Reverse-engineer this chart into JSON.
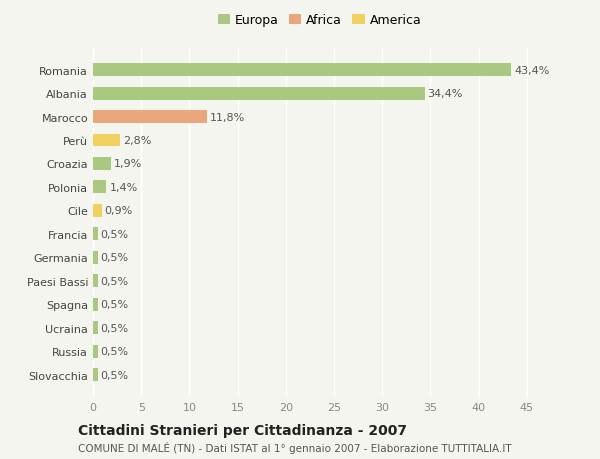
{
  "categories": [
    "Romania",
    "Albania",
    "Marocco",
    "Perù",
    "Croazia",
    "Polonia",
    "Cile",
    "Francia",
    "Germania",
    "Paesi Bassi",
    "Spagna",
    "Ucraina",
    "Russia",
    "Slovacchia"
  ],
  "values": [
    43.4,
    34.4,
    11.8,
    2.8,
    1.9,
    1.4,
    0.9,
    0.5,
    0.5,
    0.5,
    0.5,
    0.5,
    0.5,
    0.5
  ],
  "labels": [
    "43,4%",
    "34,4%",
    "11,8%",
    "2,8%",
    "1,9%",
    "1,4%",
    "0,9%",
    "0,5%",
    "0,5%",
    "0,5%",
    "0,5%",
    "0,5%",
    "0,5%",
    "0,5%"
  ],
  "continent": [
    "Europa",
    "Europa",
    "Africa",
    "America",
    "Europa",
    "Europa",
    "America",
    "Europa",
    "Europa",
    "Europa",
    "Europa",
    "Europa",
    "Europa",
    "Europa"
  ],
  "colors": {
    "Europa": "#a8c97f",
    "Africa": "#e8a87c",
    "America": "#f0d060"
  },
  "xlim": [
    0,
    47
  ],
  "xticks": [
    0,
    5,
    10,
    15,
    20,
    25,
    30,
    35,
    40,
    45
  ],
  "title": "Cittadini Stranieri per Cittadinanza - 2007",
  "subtitle": "COMUNE DI MALÉ (TN) - Dati ISTAT al 1° gennaio 2007 - Elaborazione TUTTITALIA.IT",
  "background_color": "#f5f5f0",
  "bar_height": 0.55,
  "label_fontsize": 8,
  "tick_fontsize": 8,
  "ytick_fontsize": 8,
  "title_fontsize": 10,
  "subtitle_fontsize": 7.5,
  "legend_fontsize": 9
}
